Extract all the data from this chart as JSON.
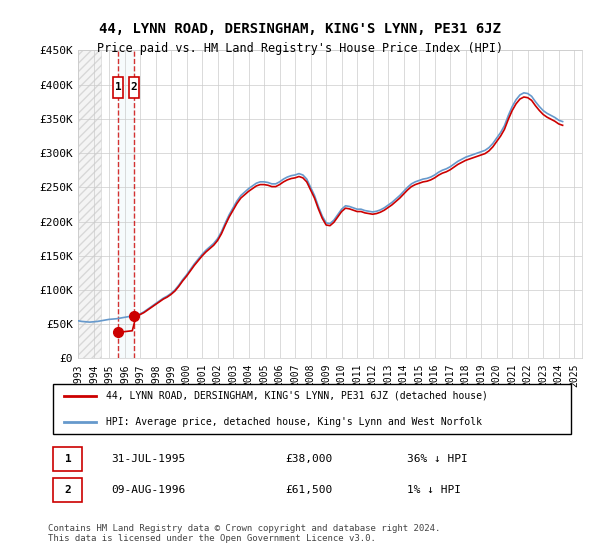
{
  "title": "44, LYNN ROAD, DERSINGHAM, KING'S LYNN, PE31 6JZ",
  "subtitle": "Price paid vs. HM Land Registry's House Price Index (HPI)",
  "legend_line1": "44, LYNN ROAD, DERSINGHAM, KING'S LYNN, PE31 6JZ (detached house)",
  "legend_line2": "HPI: Average price, detached house, King's Lynn and West Norfolk",
  "transactions": [
    {
      "label": "1",
      "date": "31-JUL-1995",
      "price": 38000,
      "hpi_diff": "36% ↓ HPI",
      "x": 1995.58
    },
    {
      "label": "2",
      "date": "09-AUG-1996",
      "price": 61500,
      "hpi_diff": "1% ↓ HPI",
      "x": 1996.62
    }
  ],
  "footer": "Contains HM Land Registry data © Crown copyright and database right 2024.\nThis data is licensed under the Open Government Licence v3.0.",
  "xmin": 1993,
  "xmax": 2025.5,
  "ymin": 0,
  "ymax": 450000,
  "hatch_xmax": 1993.5,
  "price_color": "#cc0000",
  "hpi_color": "#6699cc",
  "background_hatch_color": "#e8e8e8",
  "hpi_data_x": [
    1993.0,
    1993.25,
    1993.5,
    1993.75,
    1994.0,
    1994.25,
    1994.5,
    1994.75,
    1995.0,
    1995.25,
    1995.5,
    1995.75,
    1996.0,
    1996.25,
    1996.5,
    1996.75,
    1997.0,
    1997.25,
    1997.5,
    1997.75,
    1998.0,
    1998.25,
    1998.5,
    1998.75,
    1999.0,
    1999.25,
    1999.5,
    1999.75,
    2000.0,
    2000.25,
    2000.5,
    2000.75,
    2001.0,
    2001.25,
    2001.5,
    2001.75,
    2002.0,
    2002.25,
    2002.5,
    2002.75,
    2003.0,
    2003.25,
    2003.5,
    2003.75,
    2004.0,
    2004.25,
    2004.5,
    2004.75,
    2005.0,
    2005.25,
    2005.5,
    2005.75,
    2006.0,
    2006.25,
    2006.5,
    2006.75,
    2007.0,
    2007.25,
    2007.5,
    2007.75,
    2008.0,
    2008.25,
    2008.5,
    2008.75,
    2009.0,
    2009.25,
    2009.5,
    2009.75,
    2010.0,
    2010.25,
    2010.5,
    2010.75,
    2011.0,
    2011.25,
    2011.5,
    2011.75,
    2012.0,
    2012.25,
    2012.5,
    2012.75,
    2013.0,
    2013.25,
    2013.5,
    2013.75,
    2014.0,
    2014.25,
    2014.5,
    2014.75,
    2015.0,
    2015.25,
    2015.5,
    2015.75,
    2016.0,
    2016.25,
    2016.5,
    2016.75,
    2017.0,
    2017.25,
    2017.5,
    2017.75,
    2018.0,
    2018.25,
    2018.5,
    2018.75,
    2019.0,
    2019.25,
    2019.5,
    2019.75,
    2020.0,
    2020.25,
    2020.5,
    2020.75,
    2021.0,
    2021.25,
    2021.5,
    2021.75,
    2022.0,
    2022.25,
    2022.5,
    2022.75,
    2023.0,
    2023.25,
    2023.5,
    2023.75,
    2024.0,
    2024.25
  ],
  "hpi_data_y": [
    55000,
    54000,
    53500,
    53000,
    53500,
    54000,
    55000,
    56000,
    57000,
    57500,
    58000,
    59000,
    60000,
    61000,
    62000,
    63000,
    65000,
    68000,
    72000,
    76000,
    80000,
    84000,
    88000,
    91000,
    95000,
    100000,
    107000,
    115000,
    122000,
    130000,
    138000,
    145000,
    152000,
    158000,
    163000,
    168000,
    175000,
    185000,
    198000,
    210000,
    220000,
    230000,
    238000,
    243000,
    248000,
    252000,
    256000,
    258000,
    258000,
    257000,
    255000,
    255000,
    258000,
    262000,
    265000,
    267000,
    268000,
    270000,
    268000,
    262000,
    250000,
    238000,
    222000,
    208000,
    198000,
    197000,
    202000,
    210000,
    218000,
    223000,
    222000,
    220000,
    218000,
    218000,
    216000,
    215000,
    214000,
    215000,
    217000,
    220000,
    224000,
    228000,
    233000,
    238000,
    244000,
    250000,
    255000,
    258000,
    260000,
    262000,
    263000,
    265000,
    268000,
    272000,
    275000,
    277000,
    280000,
    284000,
    288000,
    291000,
    294000,
    296000,
    298000,
    300000,
    302000,
    304000,
    308000,
    314000,
    322000,
    330000,
    340000,
    355000,
    368000,
    378000,
    385000,
    388000,
    387000,
    383000,
    375000,
    368000,
    362000,
    358000,
    355000,
    352000,
    348000,
    346000
  ],
  "price_data_x": [
    1993.0,
    1995.58,
    1996.62,
    2024.25
  ],
  "price_data_y": [
    null,
    38000,
    61500,
    null
  ],
  "ytick_labels": [
    "£0",
    "£50K",
    "£100K",
    "£150K",
    "£200K",
    "£250K",
    "£300K",
    "£350K",
    "£400K",
    "£450K"
  ],
  "ytick_values": [
    0,
    50000,
    100000,
    150000,
    200000,
    250000,
    300000,
    350000,
    400000,
    450000
  ],
  "xtick_years": [
    1993,
    1994,
    1995,
    1996,
    1997,
    1998,
    1999,
    2000,
    2001,
    2002,
    2003,
    2004,
    2005,
    2006,
    2007,
    2008,
    2009,
    2010,
    2011,
    2012,
    2013,
    2014,
    2015,
    2016,
    2017,
    2018,
    2019,
    2020,
    2021,
    2022,
    2023,
    2024,
    2025
  ]
}
